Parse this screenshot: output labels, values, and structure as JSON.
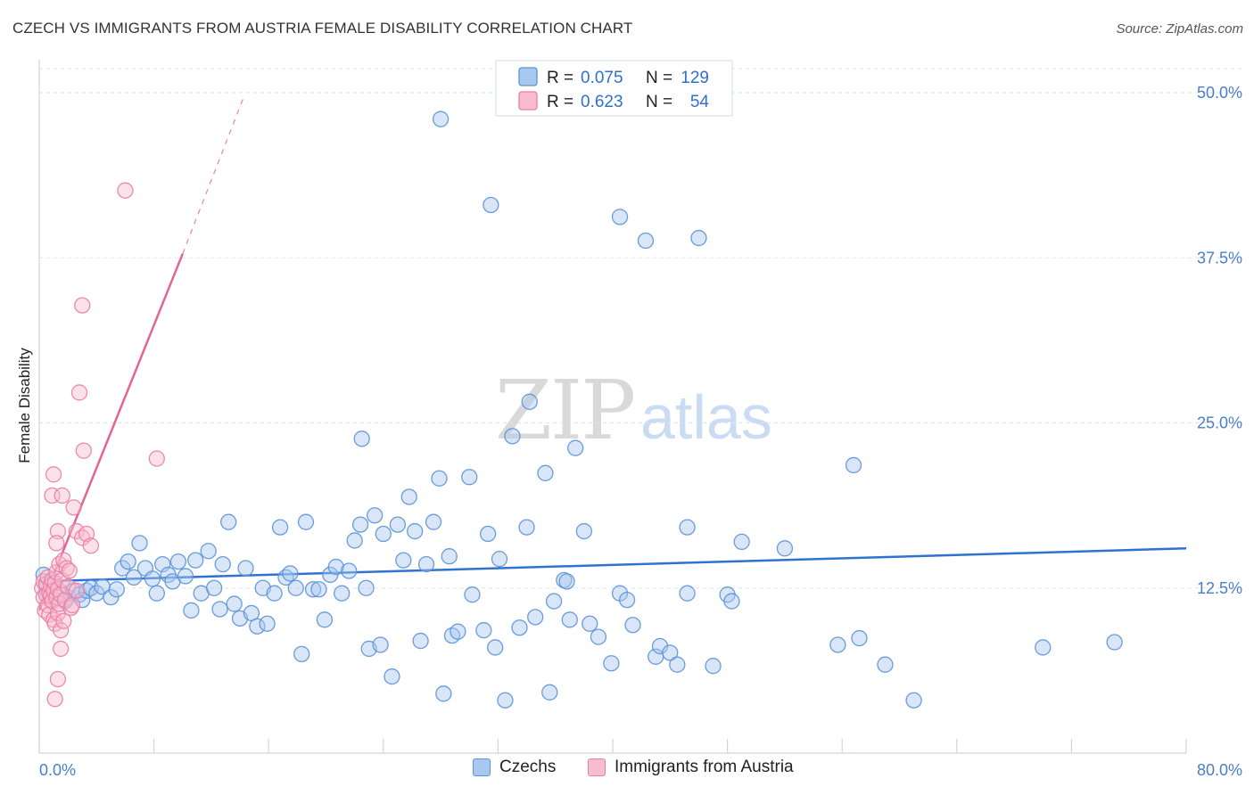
{
  "title": "CZECH VS IMMIGRANTS FROM AUSTRIA FEMALE DISABILITY CORRELATION CHART",
  "source": "Source: ZipAtlas.com",
  "watermark": {
    "zip": "ZIP",
    "atlas": "atlas"
  },
  "colors": {
    "blue_fill": "#a9c8f0",
    "blue_stroke": "#5b92d8",
    "blue_line": "#2f72d0",
    "pink_fill": "#f7bcd0",
    "pink_stroke": "#ea7ea3",
    "pink_line": "#e46494",
    "tick_label": "#4a7fc8",
    "grid": "#dde3ea"
  },
  "legend": {
    "rows": [
      {
        "r_label": "R =",
        "r_value": "0.075",
        "n_label": "N =",
        "n_value": "129"
      },
      {
        "r_label": "R =",
        "r_value": "0.623",
        "n_label": "N =",
        "n_value": "54"
      }
    ]
  },
  "bottom_legend": [
    {
      "label": "Czechs"
    },
    {
      "label": "Immigrants from Austria"
    }
  ],
  "chart_data": {
    "type": "scatter",
    "title": "CZECH VS IMMIGRANTS FROM AUSTRIA FEMALE DISABILITY CORRELATION CHART",
    "xlabel": "",
    "ylabel": "Female Disability",
    "xlim": [
      0,
      80
    ],
    "ylim": [
      0,
      52.5
    ],
    "x_tick_labels": [
      "0.0%",
      "80.0%"
    ],
    "y_ticks": [
      12.5,
      25.0,
      37.5,
      50.0
    ],
    "y_tick_labels": [
      "12.5%",
      "25.0%",
      "37.5%",
      "50.0%"
    ],
    "grid": "horizontal dashed",
    "series": [
      {
        "name": "Czechs",
        "color": "#5b92d8",
        "r": 0.075,
        "n": 129,
        "trend": {
          "x": [
            0,
            80
          ],
          "y": [
            13.0,
            15.5
          ]
        },
        "points": [
          [
            0.3,
            13.5
          ],
          [
            0.5,
            12.5
          ],
          [
            0.7,
            12.0
          ],
          [
            0.9,
            11.5
          ],
          [
            1.0,
            12.8
          ],
          [
            1.2,
            11.8
          ],
          [
            1.5,
            12.2
          ],
          [
            1.8,
            11.5
          ],
          [
            2.0,
            11.8
          ],
          [
            2.4,
            12.3
          ],
          [
            2.8,
            12.0
          ],
          [
            3.0,
            11.6
          ],
          [
            3.3,
            12.3
          ],
          [
            3.6,
            12.5
          ],
          [
            4.0,
            12.1
          ],
          [
            4.4,
            12.6
          ],
          [
            5.0,
            11.8
          ],
          [
            5.4,
            12.4
          ],
          [
            5.8,
            14.0
          ],
          [
            6.2,
            14.5
          ],
          [
            6.6,
            13.3
          ],
          [
            7.0,
            15.9
          ],
          [
            7.4,
            14.0
          ],
          [
            7.9,
            13.2
          ],
          [
            8.2,
            12.1
          ],
          [
            8.6,
            14.3
          ],
          [
            9.0,
            13.5
          ],
          [
            9.3,
            13.0
          ],
          [
            9.7,
            14.5
          ],
          [
            10.2,
            13.4
          ],
          [
            10.6,
            10.8
          ],
          [
            10.9,
            14.6
          ],
          [
            11.3,
            12.1
          ],
          [
            11.8,
            15.3
          ],
          [
            12.2,
            12.5
          ],
          [
            12.6,
            10.9
          ],
          [
            12.8,
            14.3
          ],
          [
            13.2,
            17.5
          ],
          [
            13.6,
            11.3
          ],
          [
            14.0,
            10.2
          ],
          [
            14.4,
            14.0
          ],
          [
            14.8,
            10.6
          ],
          [
            15.2,
            9.6
          ],
          [
            15.6,
            12.5
          ],
          [
            15.9,
            9.8
          ],
          [
            16.4,
            12.1
          ],
          [
            16.8,
            17.1
          ],
          [
            17.2,
            13.3
          ],
          [
            17.5,
            13.6
          ],
          [
            17.9,
            12.5
          ],
          [
            18.3,
            7.5
          ],
          [
            18.6,
            17.5
          ],
          [
            19.1,
            12.4
          ],
          [
            19.5,
            12.4
          ],
          [
            19.9,
            10.1
          ],
          [
            20.3,
            13.5
          ],
          [
            20.7,
            14.1
          ],
          [
            21.1,
            12.1
          ],
          [
            21.6,
            13.8
          ],
          [
            22.0,
            16.1
          ],
          [
            22.4,
            17.3
          ],
          [
            22.8,
            12.5
          ],
          [
            23.0,
            7.9
          ],
          [
            23.4,
            18.0
          ],
          [
            23.8,
            8.2
          ],
          [
            24.0,
            16.6
          ],
          [
            24.6,
            5.8
          ],
          [
            25.0,
            17.3
          ],
          [
            25.4,
            14.6
          ],
          [
            25.8,
            19.4
          ],
          [
            26.2,
            16.8
          ],
          [
            26.6,
            8.5
          ],
          [
            27.0,
            14.3
          ],
          [
            27.5,
            17.5
          ],
          [
            27.9,
            20.8
          ],
          [
            28.2,
            4.5
          ],
          [
            28.6,
            14.9
          ],
          [
            28.8,
            8.9
          ],
          [
            29.2,
            9.2
          ],
          [
            30.2,
            12.0
          ],
          [
            30.0,
            20.9
          ],
          [
            31.0,
            9.3
          ],
          [
            31.3,
            16.6
          ],
          [
            31.8,
            8.0
          ],
          [
            32.1,
            14.7
          ],
          [
            32.5,
            4.0
          ],
          [
            33.0,
            24.0
          ],
          [
            33.5,
            9.5
          ],
          [
            34.0,
            17.1
          ],
          [
            34.2,
            26.6
          ],
          [
            34.6,
            10.3
          ],
          [
            35.3,
            21.2
          ],
          [
            35.6,
            4.6
          ],
          [
            35.9,
            11.5
          ],
          [
            36.6,
            13.1
          ],
          [
            36.8,
            13.0
          ],
          [
            37.4,
            23.1
          ],
          [
            37.0,
            10.1
          ],
          [
            38.0,
            16.8
          ],
          [
            38.4,
            9.8
          ],
          [
            39.0,
            8.8
          ],
          [
            39.9,
            6.8
          ],
          [
            40.5,
            12.1
          ],
          [
            40.5,
            40.6
          ],
          [
            41.0,
            11.6
          ],
          [
            41.4,
            9.7
          ],
          [
            42.3,
            38.8
          ],
          [
            43.0,
            7.3
          ],
          [
            43.3,
            8.1
          ],
          [
            44.0,
            7.6
          ],
          [
            44.5,
            6.7
          ],
          [
            45.2,
            12.1
          ],
          [
            45.2,
            17.1
          ],
          [
            46.0,
            39.0
          ],
          [
            47.0,
            6.6
          ],
          [
            48.0,
            12.0
          ],
          [
            48.3,
            11.5
          ],
          [
            49.0,
            16.0
          ],
          [
            52.0,
            15.5
          ],
          [
            55.7,
            8.2
          ],
          [
            56.8,
            21.8
          ],
          [
            57.2,
            8.7
          ],
          [
            59.0,
            6.7
          ],
          [
            61.0,
            4.0
          ],
          [
            70.0,
            8.0
          ],
          [
            75.0,
            8.4
          ],
          [
            28.0,
            48.0
          ],
          [
            31.5,
            41.5
          ],
          [
            22.5,
            23.8
          ]
        ]
      },
      {
        "name": "Immigrants from Austria",
        "color": "#ea7ea3",
        "r": 0.623,
        "n": 54,
        "trend": {
          "x": [
            0,
            10
          ],
          "y": [
            10.8,
            37.8
          ]
        },
        "trend_dashed": {
          "x": [
            10,
            14.2
          ],
          "y": [
            37.8,
            49.5
          ]
        },
        "points": [
          [
            0.2,
            12.5
          ],
          [
            0.3,
            11.8
          ],
          [
            0.3,
            13.0
          ],
          [
            0.4,
            10.8
          ],
          [
            0.5,
            12.0
          ],
          [
            0.5,
            12.8
          ],
          [
            0.6,
            11.2
          ],
          [
            0.6,
            13.3
          ],
          [
            0.7,
            12.2
          ],
          [
            0.7,
            10.5
          ],
          [
            0.8,
            11.9
          ],
          [
            0.8,
            12.7
          ],
          [
            0.9,
            13.1
          ],
          [
            0.9,
            11.5
          ],
          [
            1.0,
            12.3
          ],
          [
            1.0,
            10.1
          ],
          [
            1.1,
            12.9
          ],
          [
            1.1,
            9.8
          ],
          [
            1.2,
            11.8
          ],
          [
            1.2,
            13.7
          ],
          [
            1.3,
            12.4
          ],
          [
            1.3,
            10.6
          ],
          [
            1.4,
            14.3
          ],
          [
            1.4,
            11.3
          ],
          [
            1.5,
            12.0
          ],
          [
            1.5,
            9.3
          ],
          [
            1.6,
            13.1
          ],
          [
            1.7,
            14.6
          ],
          [
            1.7,
            10.0
          ],
          [
            1.8,
            11.6
          ],
          [
            1.9,
            14.0
          ],
          [
            2.0,
            12.6
          ],
          [
            2.1,
            13.8
          ],
          [
            2.2,
            11.0
          ],
          [
            2.4,
            18.6
          ],
          [
            2.6,
            16.8
          ],
          [
            2.6,
            12.3
          ],
          [
            3.0,
            16.3
          ],
          [
            3.3,
            16.6
          ],
          [
            3.6,
            15.7
          ],
          [
            1.0,
            21.1
          ],
          [
            0.9,
            19.5
          ],
          [
            1.6,
            19.5
          ],
          [
            1.3,
            16.8
          ],
          [
            1.2,
            15.9
          ],
          [
            2.3,
            11.2
          ],
          [
            1.5,
            7.9
          ],
          [
            1.3,
            5.6
          ],
          [
            1.1,
            4.1
          ],
          [
            6.0,
            42.6
          ],
          [
            3.0,
            33.9
          ],
          [
            2.8,
            27.3
          ],
          [
            3.1,
            22.9
          ],
          [
            8.2,
            22.3
          ]
        ]
      }
    ]
  }
}
